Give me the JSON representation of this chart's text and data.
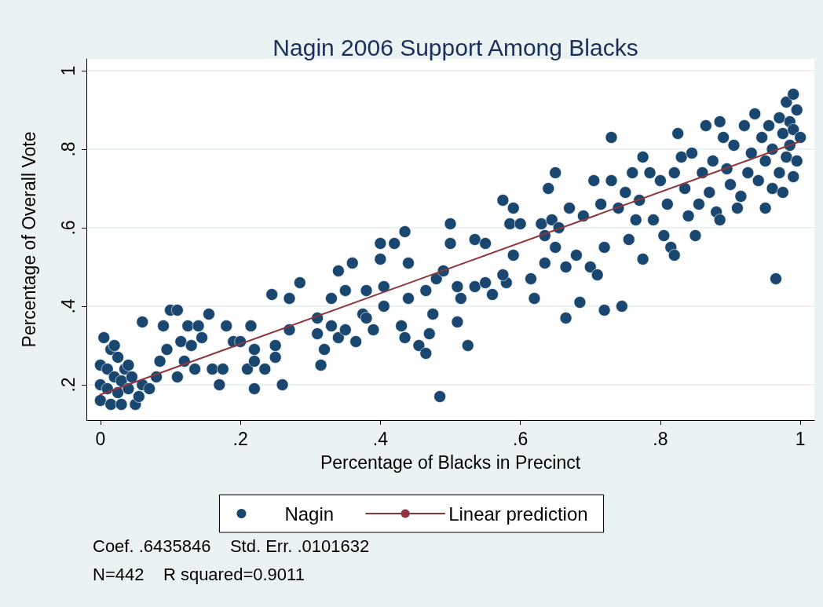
{
  "chart_data": {
    "type": "scatter",
    "title": "Nagin 2006 Support Among Blacks",
    "xlabel": "Percentage of Blacks in Precinct",
    "ylabel": "Percentage of Overall Vote",
    "annotations": [
      "Coef. .6435846    Std. Err. .0101632",
      "N=442    R squared=0.9011"
    ],
    "xlim": [
      -0.02,
      1.02
    ],
    "ylim": [
      0.11,
      1.03
    ],
    "xticks": [
      0,
      {
        "value": 0.2,
        "label": ".2"
      },
      {
        "value": 0.4,
        "label": ".4"
      },
      {
        "value": 0.6,
        "label": ".6"
      },
      {
        "value": 0.8,
        "label": ".8"
      },
      1
    ],
    "yticks": [
      {
        "value": 0.2,
        "label": ".2"
      },
      {
        "value": 0.4,
        "label": ".4"
      },
      {
        "value": 0.6,
        "label": ".6"
      },
      {
        "value": 0.8,
        "label": ".8"
      },
      1
    ],
    "grid": "y",
    "legend": "bottom",
    "marker": "circle",
    "series": [
      {
        "name": "Nagin",
        "color": "#1a476f",
        "x": [
          0,
          0,
          0,
          0.005,
          0.01,
          0.01,
          0.015,
          0.015,
          0.02,
          0.02,
          0.025,
          0.025,
          0.03,
          0.03,
          0.035,
          0.04,
          0.04,
          0.045,
          0.05,
          0.055,
          0.06,
          0.06,
          0.07,
          0.08,
          0.085,
          0.09,
          0.095,
          0.1,
          0.11,
          0.11,
          0.115,
          0.12,
          0.125,
          0.13,
          0.135,
          0.14,
          0.145,
          0.155,
          0.16,
          0.17,
          0.175,
          0.18,
          0.19,
          0.2,
          0.21,
          0.215,
          0.22,
          0.22,
          0.22,
          0.235,
          0.245,
          0.25,
          0.25,
          0.26,
          0.27,
          0.27,
          0.285,
          0.31,
          0.31,
          0.315,
          0.32,
          0.33,
          0.33,
          0.34,
          0.34,
          0.35,
          0.35,
          0.36,
          0.365,
          0.375,
          0.38,
          0.38,
          0.39,
          0.4,
          0.4,
          0.405,
          0.405,
          0.42,
          0.43,
          0.435,
          0.435,
          0.44,
          0.44,
          0.455,
          0.465,
          0.465,
          0.47,
          0.475,
          0.48,
          0.485,
          0.49,
          0.5,
          0.5,
          0.51,
          0.51,
          0.515,
          0.525,
          0.535,
          0.535,
          0.55,
          0.55,
          0.56,
          0.575,
          0.58,
          0.575,
          0.585,
          0.59,
          0.59,
          0.6,
          0.615,
          0.62,
          0.63,
          0.635,
          0.635,
          0.64,
          0.645,
          0.65,
          0.65,
          0.655,
          0.665,
          0.665,
          0.67,
          0.68,
          0.685,
          0.69,
          0.7,
          0.705,
          0.71,
          0.715,
          0.72,
          0.72,
          0.73,
          0.73,
          0.74,
          0.745,
          0.75,
          0.755,
          0.76,
          0.765,
          0.77,
          0.775,
          0.775,
          0.785,
          0.79,
          0.8,
          0.805,
          0.81,
          0.815,
          0.82,
          0.82,
          0.825,
          0.83,
          0.835,
          0.84,
          0.845,
          0.85,
          0.855,
          0.86,
          0.865,
          0.87,
          0.875,
          0.88,
          0.885,
          0.885,
          0.89,
          0.895,
          0.9,
          0.905,
          0.91,
          0.915,
          0.92,
          0.925,
          0.93,
          0.935,
          0.94,
          0.945,
          0.95,
          0.95,
          0.955,
          0.96,
          0.96,
          0.965,
          0.97,
          0.97,
          0.975,
          0.975,
          0.98,
          0.98,
          0.985,
          0.985,
          0.99,
          0.99,
          0.99,
          0.995,
          0.995,
          1
        ],
        "values": [
          0.25,
          0.2,
          0.16,
          0.32,
          0.24,
          0.19,
          0.29,
          0.15,
          0.3,
          0.22,
          0.18,
          0.27,
          0.15,
          0.21,
          0.24,
          0.19,
          0.25,
          0.22,
          0.15,
          0.17,
          0.36,
          0.2,
          0.19,
          0.22,
          0.26,
          0.35,
          0.29,
          0.39,
          0.39,
          0.22,
          0.31,
          0.26,
          0.35,
          0.3,
          0.24,
          0.35,
          0.32,
          0.38,
          0.24,
          0.2,
          0.24,
          0.35,
          0.31,
          0.31,
          0.24,
          0.35,
          0.29,
          0.19,
          0.26,
          0.24,
          0.43,
          0.3,
          0.27,
          0.2,
          0.42,
          0.34,
          0.46,
          0.37,
          0.33,
          0.25,
          0.29,
          0.42,
          0.35,
          0.49,
          0.32,
          0.34,
          0.44,
          0.51,
          0.31,
          0.38,
          0.44,
          0.37,
          0.34,
          0.56,
          0.52,
          0.45,
          0.4,
          0.56,
          0.35,
          0.59,
          0.32,
          0.42,
          0.51,
          0.3,
          0.44,
          0.28,
          0.33,
          0.38,
          0.47,
          0.17,
          0.49,
          0.61,
          0.56,
          0.45,
          0.36,
          0.42,
          0.3,
          0.57,
          0.45,
          0.56,
          0.46,
          0.43,
          0.67,
          0.46,
          0.48,
          0.61,
          0.65,
          0.53,
          0.61,
          0.47,
          0.42,
          0.61,
          0.58,
          0.51,
          0.7,
          0.62,
          0.74,
          0.55,
          0.6,
          0.5,
          0.37,
          0.65,
          0.53,
          0.41,
          0.63,
          0.5,
          0.72,
          0.48,
          0.66,
          0.55,
          0.39,
          0.72,
          0.83,
          0.65,
          0.4,
          0.69,
          0.57,
          0.74,
          0.62,
          0.67,
          0.78,
          0.52,
          0.74,
          0.62,
          0.72,
          0.58,
          0.66,
          0.55,
          0.74,
          0.53,
          0.84,
          0.78,
          0.7,
          0.63,
          0.79,
          0.58,
          0.66,
          0.74,
          0.86,
          0.69,
          0.77,
          0.64,
          0.87,
          0.62,
          0.83,
          0.75,
          0.71,
          0.81,
          0.65,
          0.68,
          0.86,
          0.74,
          0.79,
          0.89,
          0.72,
          0.83,
          0.65,
          0.77,
          0.86,
          0.7,
          0.8,
          0.47,
          0.88,
          0.74,
          0.84,
          0.69,
          0.92,
          0.78,
          0.81,
          0.87,
          0.94,
          0.73,
          0.85,
          0.9,
          0.77,
          0.83
        ]
      },
      {
        "name": "Linear prediction",
        "type": "line",
        "color": "#90353b",
        "marker": "none",
        "x": [
          0,
          1
        ],
        "values": [
          0.175,
          0.82
        ]
      }
    ]
  }
}
